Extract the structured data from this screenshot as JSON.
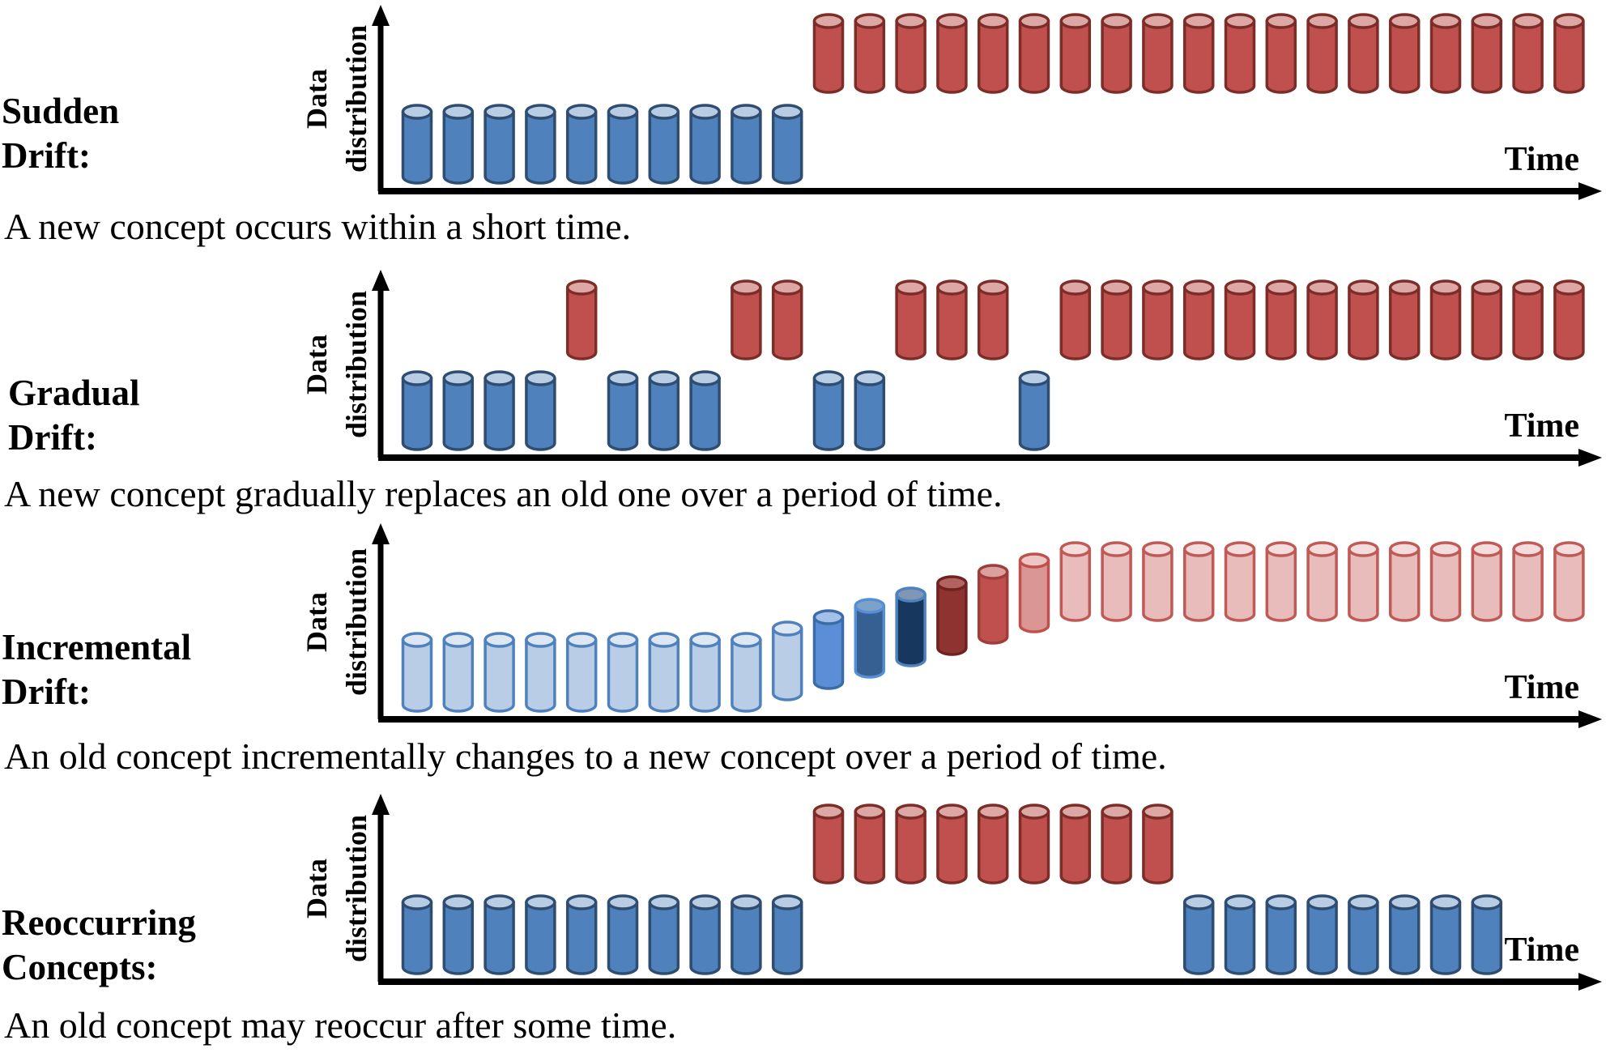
{
  "figure": {
    "description": "Four types of concept drift shown as data-distribution cylinders over time"
  },
  "axis": {
    "y_label_line1": "Data",
    "y_label_line2": "distribution",
    "x_label": "Time"
  },
  "palette": {
    "blue": {
      "body": "#4f81bd",
      "cap": "#b8cce4",
      "stroke": "#2e4d71"
    },
    "red": {
      "body": "#c0504d",
      "cap": "#dca7a5",
      "stroke": "#7c2d28"
    },
    "paleBlue": {
      "body": "#b9cde7",
      "cap": "#dce7f3",
      "stroke": "#4f81bd"
    },
    "midBlue": {
      "body": "#5b8ed6",
      "cap": "#a3c1e8",
      "stroke": "#3c6ca8"
    },
    "steelBlue": {
      "body": "#376092",
      "cap": "#7da2c9",
      "stroke": "#558ed5"
    },
    "darkNavy": {
      "body": "#17375e",
      "cap": "#7f97b5",
      "stroke": "#4f81bd"
    },
    "maroon": {
      "body": "#8e3330",
      "cap": "#b26360",
      "stroke": "#6e2320"
    },
    "medRed": {
      "body": "#c0504d",
      "cap": "#db9f9d",
      "stroke": "#9e3d3a"
    },
    "pinkRed": {
      "body": "#d99694",
      "cap": "#ecc5c4",
      "stroke": "#c0504d"
    },
    "palePink": {
      "body": "#e7bcba",
      "cap": "#f3dcdb",
      "stroke": "#c05a56"
    }
  },
  "panels": [
    {
      "id": "sudden-drift",
      "title1": "Sudden",
      "title2": "Drift:",
      "caption": "A new concept occurs within a short time.",
      "cylinders": [
        {
          "color": "blue",
          "level": 0,
          "slots": [
            0,
            1,
            2,
            3,
            4,
            5,
            6,
            7,
            8,
            9
          ]
        },
        {
          "color": "red",
          "level": 8,
          "slots": [
            10,
            11,
            12,
            13,
            14,
            15,
            16,
            17,
            18,
            19,
            20,
            21,
            22,
            23,
            24,
            25,
            26,
            27,
            28
          ]
        }
      ]
    },
    {
      "id": "gradual-drift",
      "title1": "Gradual",
      "title2": "Drift:",
      "caption": "A new concept gradually replaces an old one over a period of time.",
      "cylinders": [
        {
          "color": "blue",
          "level": 0,
          "slots": [
            0,
            1,
            2,
            3,
            5,
            6,
            7,
            10,
            11,
            15
          ]
        },
        {
          "color": "red",
          "level": 8,
          "slots": [
            4,
            8,
            9,
            12,
            13,
            14,
            16,
            17,
            18,
            19,
            20,
            21,
            22,
            23,
            24,
            25,
            26,
            27,
            28
          ]
        }
      ]
    },
    {
      "id": "incremental-drift",
      "title1": "Incremental",
      "title2": "Drift:",
      "caption": "An old concept incrementally changes to a new concept over a period of time.",
      "cylinders": [
        {
          "color": "paleBlue",
          "level": 0,
          "slots": [
            0,
            1,
            2,
            3,
            4,
            5,
            6,
            7,
            8
          ]
        },
        {
          "color": "paleBlue",
          "level": 1,
          "slots": [
            9
          ]
        },
        {
          "color": "midBlue",
          "level": 2,
          "slots": [
            10
          ]
        },
        {
          "color": "steelBlue",
          "level": 3,
          "slots": [
            11
          ]
        },
        {
          "color": "darkNavy",
          "level": 4,
          "slots": [
            12
          ]
        },
        {
          "color": "maroon",
          "level": 5,
          "slots": [
            13
          ]
        },
        {
          "color": "medRed",
          "level": 6,
          "slots": [
            14
          ]
        },
        {
          "color": "pinkRed",
          "level": 7,
          "slots": [
            15
          ]
        },
        {
          "color": "palePink",
          "level": 8,
          "slots": [
            16,
            17,
            18,
            19,
            20,
            21,
            22,
            23,
            24,
            25,
            26,
            27,
            28
          ]
        }
      ]
    },
    {
      "id": "reoccurring-concepts",
      "title1": "Reoccurring",
      "title2": "Concepts:",
      "caption": "An old concept may reoccur after some time.",
      "cylinders": [
        {
          "color": "blue",
          "level": 0,
          "slots": [
            0,
            1,
            2,
            3,
            4,
            5,
            6,
            7,
            8,
            9
          ]
        },
        {
          "color": "red",
          "level": 8,
          "slots": [
            10,
            11,
            12,
            13,
            14,
            15,
            16,
            17,
            18
          ]
        },
        {
          "color": "blue",
          "level": 0,
          "slots": [
            19,
            20,
            21,
            22,
            23,
            24,
            25,
            26
          ]
        }
      ]
    }
  ]
}
